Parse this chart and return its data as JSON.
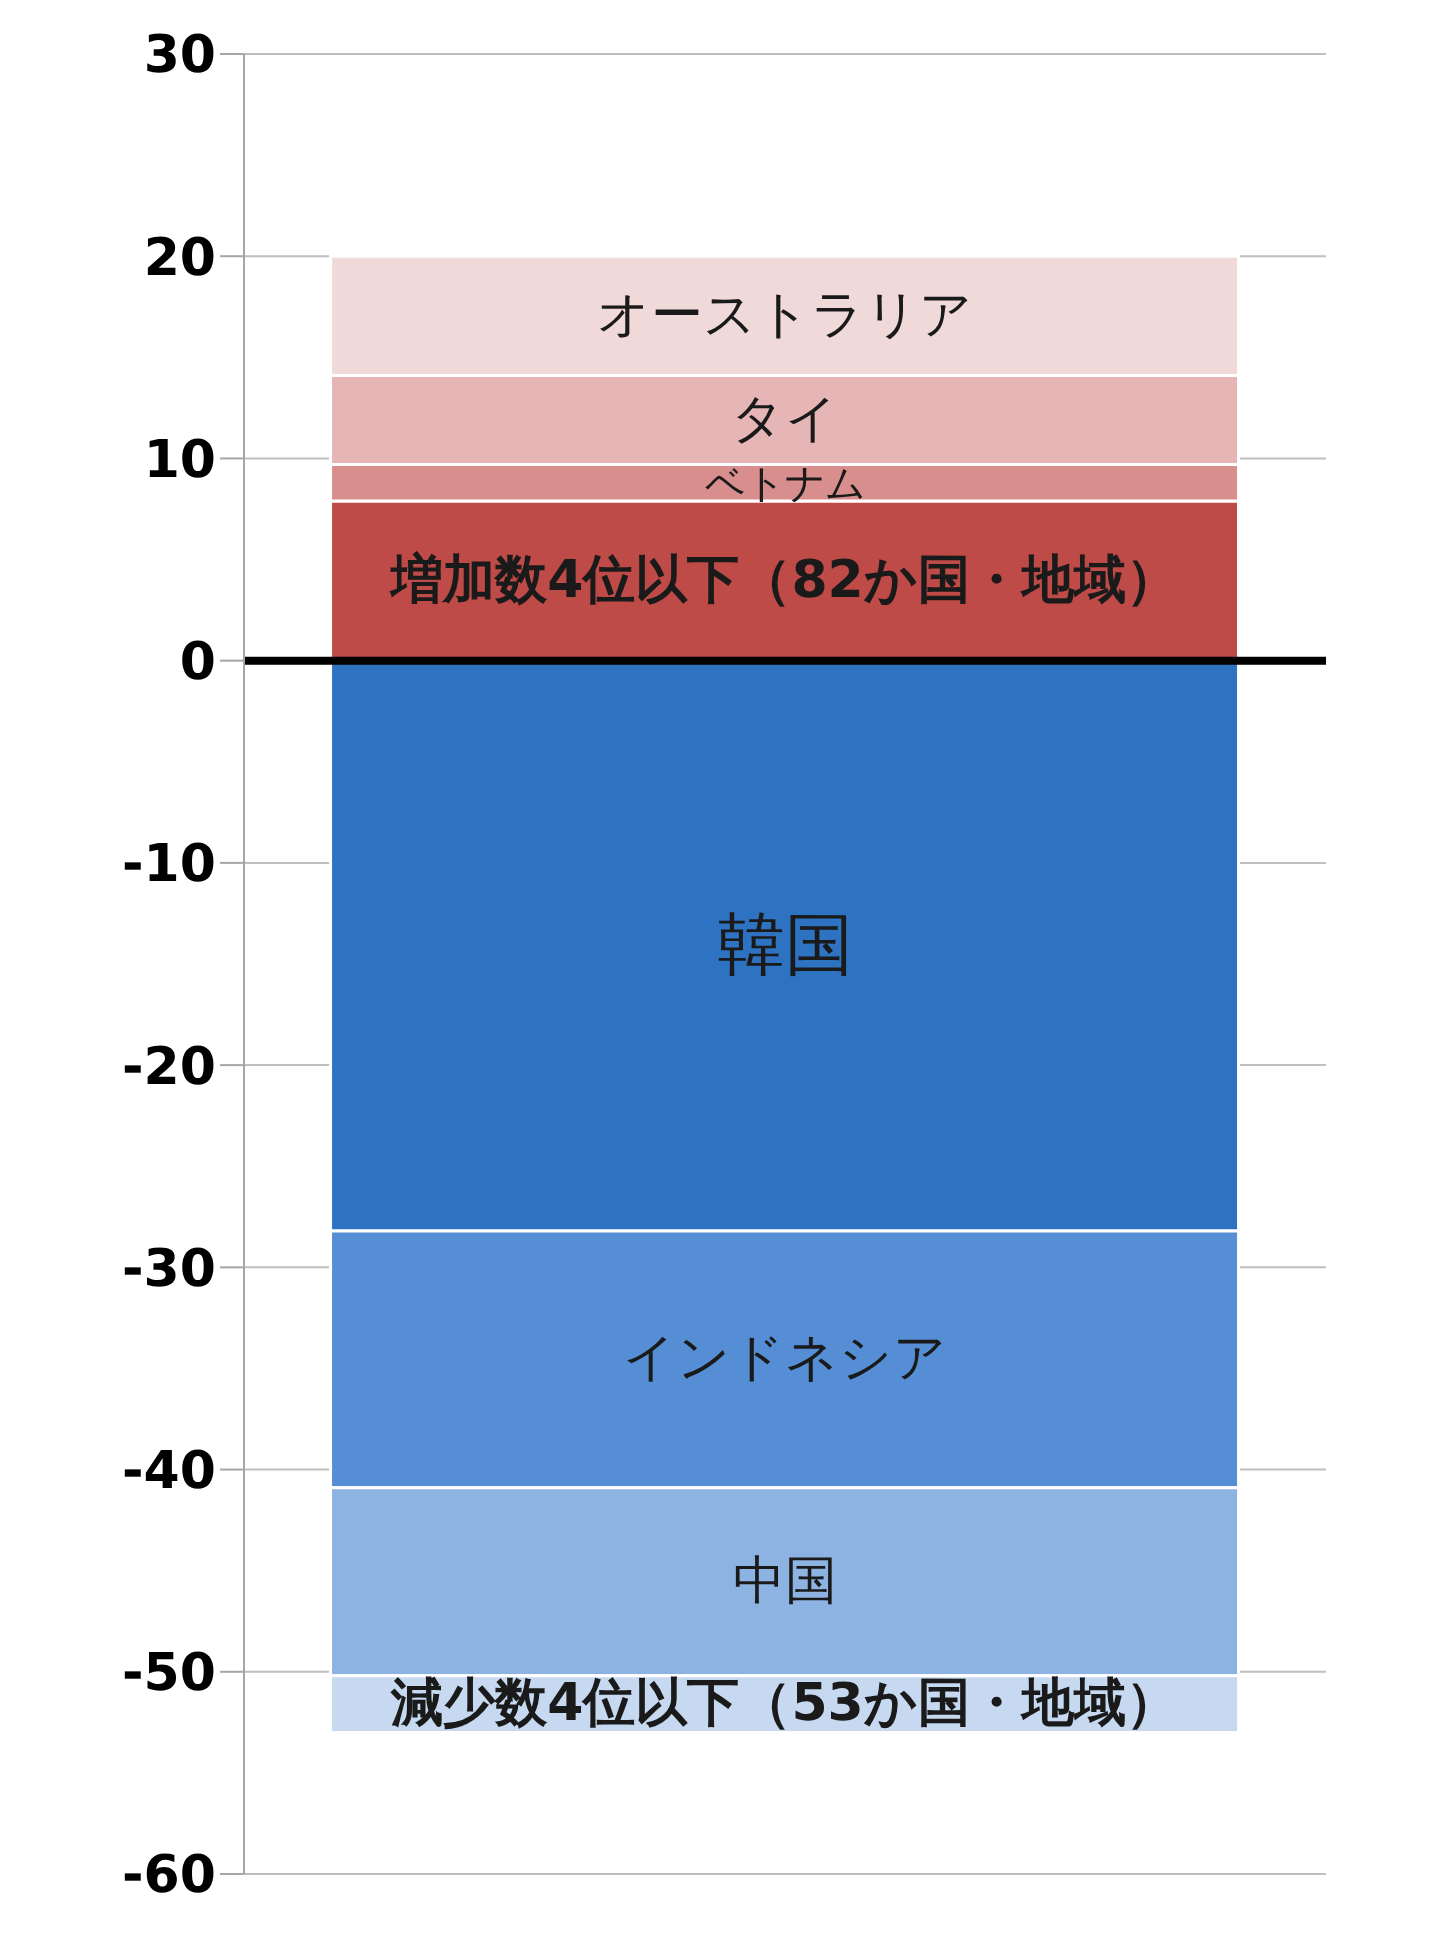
{
  "chart_data": {
    "type": "bar",
    "stacked": true,
    "categories": [
      null
    ],
    "tick_labels": "y",
    "grid": "y",
    "ylim": [
      -60,
      30
    ],
    "yticks": [
      -60,
      -50,
      -40,
      -30,
      -20,
      -10,
      0,
      10,
      20,
      30
    ],
    "series": [
      {
        "name": "増加数4位以下（82か国・地域）",
        "color": "#be4b48",
        "values": [
          7.9
        ]
      },
      {
        "name": "ベトナム",
        "color": "#d98e8e",
        "values": [
          1.8
        ]
      },
      {
        "name": "タイ",
        "color": "#e6b5b5",
        "values": [
          4.4
        ]
      },
      {
        "name": "オーストラリア",
        "color": "#f0d9d9",
        "values": [
          5.9
        ]
      },
      {
        "name": "韓国",
        "color": "#2e73c2",
        "values": [
          -28.2
        ]
      },
      {
        "name": "インドネシア",
        "color": "#558ed5",
        "values": [
          -12.7
        ]
      },
      {
        "name": "中国",
        "color": "#8db3e2",
        "values": [
          -9.3
        ]
      },
      {
        "name": "減少数4位以下（53か国・地域）",
        "color": "#c6d9f1",
        "values": [
          -2.8
        ]
      }
    ],
    "ref_lines": [
      {
        "axis": "y",
        "value": 0,
        "color": "#000000"
      }
    ]
  }
}
